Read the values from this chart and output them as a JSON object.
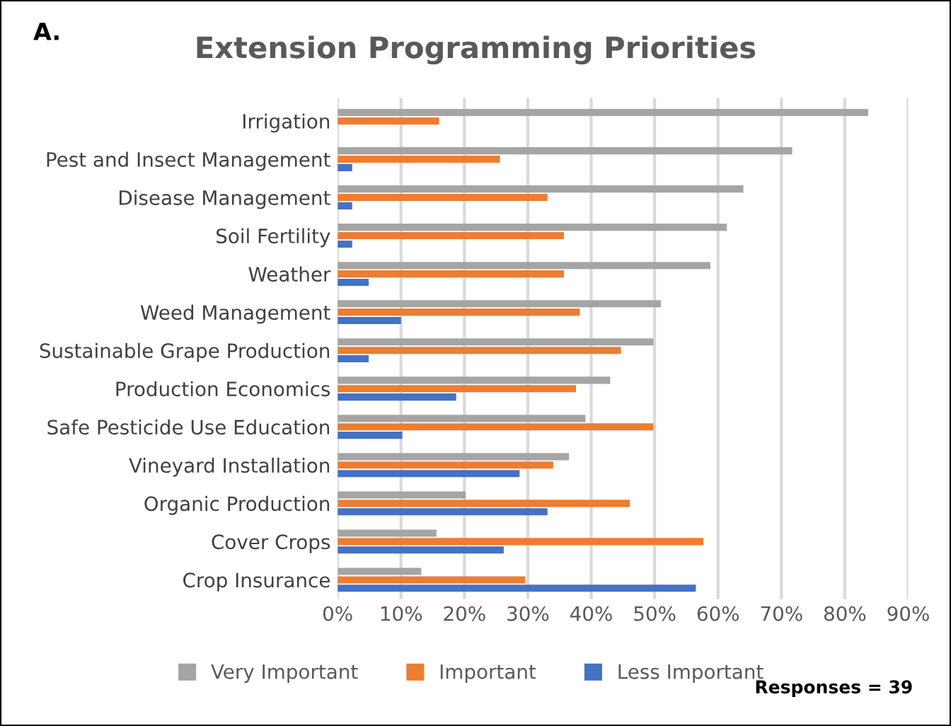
{
  "chart_data": {
    "type": "bar",
    "orientation": "horizontal",
    "title": "Extension Programming Priorities",
    "categories": [
      "Irrigation",
      "Pest and Insect Management",
      "Disease Management",
      "Soil Fertility",
      "Weather",
      "Weed Management",
      "Sustainable Grape Production",
      "Production Economics",
      "Safe Pesticide Use Education",
      "Vineyard Installation",
      "Organic Production",
      "Cover Crops",
      "Crop Insurance"
    ],
    "series": [
      {
        "name": "Very Important",
        "color": "#a5a5a5",
        "values": [
          83.7,
          71.7,
          64.0,
          61.4,
          58.8,
          51.0,
          49.8,
          43.0,
          39.1,
          36.5,
          20.2,
          15.6,
          13.2
        ]
      },
      {
        "name": "Important",
        "color": "#ed7d31",
        "values": [
          16.0,
          25.6,
          33.1,
          35.7,
          35.7,
          38.2,
          44.7,
          37.6,
          49.8,
          34.0,
          46.1,
          57.7,
          29.6
        ]
      },
      {
        "name": "Less Important",
        "color": "#4472c4",
        "values": [
          0,
          2.3,
          2.3,
          2.3,
          4.9,
          10.0,
          4.9,
          18.7,
          10.2,
          28.7,
          33.1,
          26.2,
          56.5
        ]
      }
    ],
    "xlim": [
      0,
      90
    ],
    "xticks": [
      {
        "value": 0,
        "label": "0%"
      },
      {
        "value": 10,
        "label": "10%"
      },
      {
        "value": 20,
        "label": "20%"
      },
      {
        "value": 30,
        "label": "30%"
      },
      {
        "value": 40,
        "label": "40%"
      },
      {
        "value": 50,
        "label": "50%"
      },
      {
        "value": 60,
        "label": "60%"
      },
      {
        "value": 70,
        "label": "70%"
      },
      {
        "value": 80,
        "label": "80%"
      },
      {
        "value": 90,
        "label": "90%"
      }
    ],
    "grid": "x",
    "legend": "bottom",
    "annotations": [
      "A.",
      "Responses = 39"
    ]
  }
}
